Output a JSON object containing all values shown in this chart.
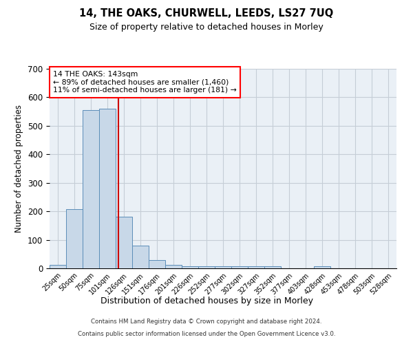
{
  "title1": "14, THE OAKS, CHURWELL, LEEDS, LS27 7UQ",
  "title2": "Size of property relative to detached houses in Morley",
  "xlabel": "Distribution of detached houses by size in Morley",
  "ylabel": "Number of detached properties",
  "footer1": "Contains HM Land Registry data © Crown copyright and database right 2024.",
  "footer2": "Contains public sector information licensed under the Open Government Licence v3.0.",
  "bin_labels": [
    "25sqm",
    "50sqm",
    "75sqm",
    "101sqm",
    "126sqm",
    "151sqm",
    "176sqm",
    "201sqm",
    "226sqm",
    "252sqm",
    "277sqm",
    "302sqm",
    "327sqm",
    "352sqm",
    "377sqm",
    "403sqm",
    "428sqm",
    "453sqm",
    "478sqm",
    "503sqm",
    "528sqm"
  ],
  "bar_heights": [
    12,
    207,
    555,
    560,
    181,
    79,
    30,
    12,
    7,
    8,
    8,
    7,
    7,
    7,
    0,
    0,
    7,
    0,
    0,
    0,
    0
  ],
  "bar_color": "#c8d8e8",
  "bar_edge_color": "#5b8db8",
  "ylim": [
    0,
    700
  ],
  "yticks": [
    0,
    100,
    200,
    300,
    400,
    500,
    600,
    700
  ],
  "annotation_text": "14 THE OAKS: 143sqm\n← 89% of detached houses are smaller (1,460)\n11% of semi-detached houses are larger (181) →",
  "annotation_box_color": "white",
  "annotation_box_edge": "red",
  "red_line_color": "#cc0000",
  "background_color": "#eaf0f6",
  "grid_color": "#c5cdd6"
}
